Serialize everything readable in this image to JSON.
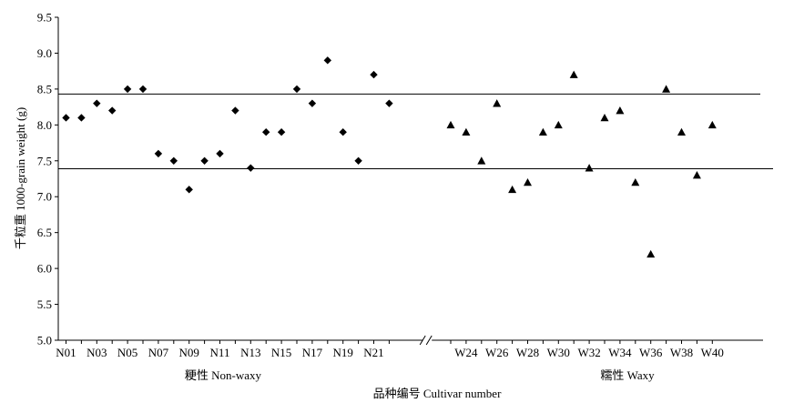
{
  "chart_data": {
    "type": "scatter",
    "title": "",
    "ylabel": "千粒重 1000-grain weight (g)",
    "xlabel": "品种编号 Cultivar number",
    "ylim": [
      5.0,
      9.5
    ],
    "yticks": [
      "5.0",
      "5.5",
      "6.0",
      "6.5",
      "7.0",
      "7.5",
      "8.0",
      "8.5",
      "9.0",
      "9.5"
    ],
    "reference_lines": [
      8.43,
      7.39
    ],
    "groups": [
      {
        "name": "粳性 Non-waxy",
        "marker": "diamond",
        "tick_labels": [
          "N01",
          "N03",
          "N05",
          "N07",
          "N09",
          "N11",
          "N13",
          "N15",
          "N17",
          "N19",
          "N21"
        ],
        "x": [
          "N01",
          "N02",
          "N03",
          "N04",
          "N05",
          "N06",
          "N07",
          "N08",
          "N09",
          "N10",
          "N11",
          "N12",
          "N13",
          "N14",
          "N15",
          "N16",
          "N17",
          "N18",
          "N19",
          "N20",
          "N21",
          "N22"
        ],
        "y": [
          8.1,
          8.1,
          8.3,
          8.2,
          8.5,
          8.5,
          7.6,
          7.5,
          7.1,
          7.5,
          7.6,
          8.2,
          7.4,
          7.9,
          7.9,
          8.5,
          8.3,
          8.9,
          7.9,
          7.5,
          8.7,
          8.3
        ]
      },
      {
        "name": "糯性 Waxy",
        "marker": "triangle",
        "tick_labels": [
          "W24",
          "W26",
          "W28",
          "W30",
          "W32",
          "W34",
          "W36",
          "W38",
          "W40"
        ],
        "x": [
          "W23",
          "W24",
          "W25",
          "W26",
          "W27",
          "W28",
          "W29",
          "W30",
          "W31",
          "W32",
          "W33",
          "W34",
          "W35",
          "W36",
          "W37",
          "W38",
          "W39",
          "W40"
        ],
        "y": [
          8.0,
          7.9,
          7.5,
          8.3,
          7.1,
          7.2,
          7.9,
          8.0,
          8.7,
          7.4,
          8.1,
          8.2,
          7.2,
          6.2,
          8.5,
          7.9,
          7.3,
          8.0
        ]
      }
    ]
  }
}
